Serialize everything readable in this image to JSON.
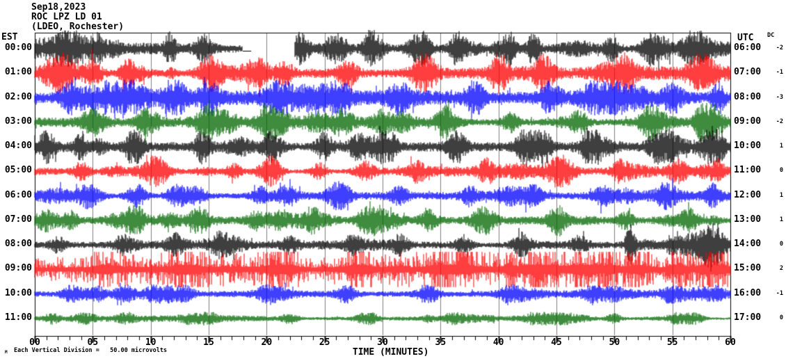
{
  "header": {
    "date": "Sep18,2023",
    "station": "ROC LPZ LD 01",
    "network": "(LDEO, Rochester)"
  },
  "axes": {
    "left_header": "EST",
    "right_header": "UTC",
    "dc_header": "DC",
    "x_title": "TIME (MINUTES)",
    "x_tick_labels": [
      "00",
      "05",
      "10",
      "15",
      "20",
      "25",
      "30",
      "35",
      "40",
      "45",
      "50",
      "55",
      "60"
    ]
  },
  "footer": {
    "logo": "M",
    "scale_text": "Each Vertical Division =   50.00 microvolts"
  },
  "colors": {
    "background": "#ffffff",
    "border": "#000000",
    "grid": "#808080",
    "trace_black": "#000000",
    "trace_red": "#ff0000",
    "trace_blue": "#0000ff",
    "trace_green": "#006600"
  },
  "chart_data": {
    "type": "line",
    "kind": "helicorder-seismogram",
    "title": "ROC LPZ LD 01 (LDEO, Rochester) Sep18,2023",
    "xlabel": "TIME (MINUTES)",
    "x_range_minutes": [
      0,
      60
    ],
    "x_major_tick_step": 5,
    "x_minor_tick_step": 1,
    "grid": "vertical-every-5-min",
    "vertical_division_microvolts": 50.0,
    "rows": [
      {
        "est": "00:00",
        "utc": "06:00",
        "dc": "-2",
        "color": "#000000",
        "base_amp": 9,
        "max_amp": 27,
        "seed": 11,
        "spiky": false,
        "events": [
          [
            2.8,
            0.6,
            2.2
          ],
          [
            5.5,
            0.4,
            1.6
          ],
          [
            11.7,
            0.3,
            2.6
          ],
          [
            14.5,
            0.5,
            1.8
          ],
          [
            23.0,
            0.5,
            2.5
          ],
          [
            26.0,
            0.8,
            2.0
          ],
          [
            29.0,
            0.5,
            2.2
          ],
          [
            33.5,
            0.5,
            2.0
          ],
          [
            36.5,
            0.4,
            2.2
          ],
          [
            41.0,
            0.4,
            2.2
          ],
          [
            43.0,
            0.35,
            3.0
          ],
          [
            49.8,
            0.4,
            2.0
          ],
          [
            53.5,
            0.5,
            1.6
          ],
          [
            57.0,
            0.5,
            1.8
          ]
        ],
        "gaps": [
          [
            17.9,
            18.6,
            22.4
          ]
        ]
      },
      {
        "est": "01:00",
        "utc": "07:00",
        "dc": "-1",
        "color": "#ff0000",
        "base_amp": 8,
        "max_amp": 30,
        "seed": 22,
        "spiky": false,
        "events": [
          [
            2.5,
            0.5,
            1.8
          ],
          [
            5.0,
            0.6,
            2.2
          ],
          [
            8.0,
            0.5,
            2.0
          ],
          [
            15.3,
            0.8,
            2.8
          ],
          [
            19.5,
            0.6,
            2.0
          ],
          [
            21.5,
            0.5,
            2.2
          ],
          [
            27.0,
            0.6,
            2.0
          ],
          [
            33.5,
            0.7,
            2.4
          ],
          [
            40.0,
            0.5,
            2.0
          ],
          [
            44.0,
            0.6,
            2.2
          ],
          [
            51.0,
            0.5,
            2.4
          ],
          [
            57.5,
            0.8,
            2.6
          ]
        ],
        "gaps": []
      },
      {
        "est": "02:00",
        "utc": "08:00",
        "dc": "-3",
        "color": "#0000ff",
        "base_amp": 8,
        "max_amp": 26,
        "seed": 33,
        "spiky": false,
        "events": [
          [
            3.0,
            0.5,
            2.0
          ],
          [
            7.0,
            0.6,
            2.2
          ],
          [
            12.5,
            0.5,
            2.0
          ],
          [
            15.0,
            0.6,
            2.4
          ],
          [
            21.0,
            0.7,
            2.2
          ],
          [
            26.0,
            0.5,
            2.0
          ],
          [
            31.5,
            0.6,
            2.2
          ],
          [
            38.0,
            0.6,
            2.4
          ],
          [
            44.5,
            0.6,
            2.4
          ],
          [
            50.0,
            0.5,
            2.0
          ],
          [
            55.0,
            0.6,
            2.2
          ],
          [
            59.0,
            0.4,
            2.2
          ]
        ],
        "gaps": []
      },
      {
        "est": "03:00",
        "utc": "09:00",
        "dc": "-2",
        "color": "#006600",
        "base_amp": 7,
        "max_amp": 28,
        "seed": 44,
        "spiky": false,
        "events": [
          [
            5.0,
            0.7,
            2.2
          ],
          [
            9.5,
            0.5,
            2.0
          ],
          [
            15.0,
            0.8,
            2.9
          ],
          [
            20.0,
            0.5,
            1.8
          ],
          [
            26.5,
            0.6,
            2.0
          ],
          [
            30.0,
            0.5,
            1.8
          ],
          [
            35.5,
            0.6,
            2.8
          ],
          [
            41.0,
            0.5,
            1.8
          ],
          [
            47.0,
            0.6,
            2.0
          ],
          [
            53.0,
            0.5,
            1.8
          ],
          [
            58.0,
            0.5,
            2.0
          ]
        ],
        "gaps": []
      },
      {
        "est": "04:00",
        "utc": "10:00",
        "dc": "1",
        "color": "#000000",
        "base_amp": 10,
        "max_amp": 26,
        "seed": 55,
        "spiky": false,
        "events": [
          [
            1.0,
            0.5,
            1.6
          ],
          [
            8.5,
            0.5,
            1.8
          ],
          [
            14.5,
            0.5,
            2.0
          ],
          [
            20.5,
            0.6,
            1.8
          ],
          [
            25.0,
            0.5,
            1.8
          ],
          [
            30.5,
            0.5,
            1.8
          ],
          [
            36.5,
            0.5,
            1.8
          ],
          [
            42.5,
            0.6,
            2.0
          ],
          [
            48.0,
            0.5,
            1.8
          ],
          [
            54.0,
            0.7,
            2.0
          ],
          [
            59.0,
            0.4,
            1.8
          ]
        ],
        "gaps": []
      },
      {
        "est": "05:00",
        "utc": "11:00",
        "dc": "0",
        "color": "#ff0000",
        "base_amp": 6,
        "max_amp": 24,
        "seed": 66,
        "spiky": false,
        "events": [
          [
            4.0,
            0.5,
            1.8
          ],
          [
            10.5,
            0.5,
            2.0
          ],
          [
            20.5,
            0.5,
            2.6
          ],
          [
            24.5,
            0.5,
            1.8
          ],
          [
            28.5,
            0.6,
            2.0
          ],
          [
            33.0,
            0.5,
            2.0
          ],
          [
            39.0,
            0.5,
            2.2
          ],
          [
            45.5,
            0.6,
            2.4
          ],
          [
            50.5,
            0.5,
            2.0
          ],
          [
            55.5,
            0.6,
            2.2
          ],
          [
            59.0,
            0.4,
            2.0
          ]
        ],
        "gaps": []
      },
      {
        "est": "06:00",
        "utc": "12:00",
        "dc": "1",
        "color": "#0000ff",
        "base_amp": 5.5,
        "max_amp": 22,
        "seed": 77,
        "spiky": false,
        "events": [
          [
            4.5,
            0.5,
            1.8
          ],
          [
            9.0,
            0.5,
            1.8
          ],
          [
            14.0,
            0.6,
            2.0
          ],
          [
            19.5,
            0.5,
            2.0
          ],
          [
            26.0,
            0.6,
            2.6
          ],
          [
            31.5,
            0.5,
            1.8
          ],
          [
            37.5,
            0.5,
            2.0
          ],
          [
            43.0,
            0.6,
            2.2
          ],
          [
            49.0,
            0.5,
            2.0
          ],
          [
            54.5,
            0.5,
            2.0
          ],
          [
            58.5,
            0.4,
            2.2
          ]
        ],
        "gaps": []
      },
      {
        "est": "07:00",
        "utc": "13:00",
        "dc": "1",
        "color": "#006600",
        "base_amp": 6,
        "max_amp": 24,
        "seed": 88,
        "spiky": false,
        "events": [
          [
            3.0,
            0.5,
            1.8
          ],
          [
            8.5,
            0.5,
            2.0
          ],
          [
            14.2,
            0.6,
            2.6
          ],
          [
            19.0,
            0.5,
            1.8
          ],
          [
            24.0,
            0.5,
            2.2
          ],
          [
            28.5,
            0.5,
            2.0
          ],
          [
            34.0,
            0.5,
            2.0
          ],
          [
            39.0,
            0.6,
            2.4
          ],
          [
            45.0,
            0.5,
            2.0
          ],
          [
            51.0,
            0.5,
            2.0
          ],
          [
            56.5,
            0.5,
            2.2
          ]
        ],
        "gaps": []
      },
      {
        "est": "08:00",
        "utc": "14:00",
        "dc": "0",
        "color": "#000000",
        "base_amp": 5,
        "max_amp": 34,
        "seed": 99,
        "spiky": false,
        "events": [
          [
            2.0,
            0.5,
            1.8
          ],
          [
            7.5,
            0.5,
            1.8
          ],
          [
            12.0,
            0.5,
            2.0
          ],
          [
            16.0,
            0.5,
            2.2
          ],
          [
            22.0,
            0.5,
            1.8
          ],
          [
            27.5,
            0.5,
            2.0
          ],
          [
            31.5,
            0.5,
            2.2
          ],
          [
            37.0,
            0.5,
            1.8
          ],
          [
            42.0,
            0.5,
            2.2
          ],
          [
            47.0,
            0.5,
            2.0
          ],
          [
            51.4,
            0.3,
            6.0
          ],
          [
            55.0,
            0.5,
            2.2
          ],
          [
            58.5,
            0.5,
            2.6
          ]
        ],
        "gaps": []
      },
      {
        "est": "09:00",
        "utc": "15:00",
        "dc": "2",
        "color": "#ff0000",
        "base_amp": 9,
        "max_amp": 22,
        "seed": 110,
        "spiky": true,
        "events": [
          [
            6.0,
            0.8,
            1.4
          ],
          [
            13.0,
            0.8,
            1.5
          ],
          [
            21.0,
            0.8,
            1.6
          ],
          [
            28.0,
            0.8,
            1.5
          ],
          [
            35.0,
            0.8,
            1.6
          ],
          [
            44.0,
            0.8,
            1.5
          ],
          [
            52.0,
            0.8,
            1.5
          ],
          [
            58.0,
            0.6,
            1.5
          ]
        ],
        "gaps": []
      },
      {
        "est": "10:00",
        "utc": "16:00",
        "dc": "-1",
        "color": "#0000ff",
        "base_amp": 4.5,
        "max_amp": 14,
        "seed": 121,
        "spiky": false,
        "events": [
          [
            3.0,
            0.5,
            1.8
          ],
          [
            8.0,
            0.5,
            1.8
          ],
          [
            13.0,
            0.6,
            2.0
          ],
          [
            20.0,
            0.5,
            1.8
          ],
          [
            27.0,
            0.5,
            1.8
          ],
          [
            34.0,
            0.5,
            1.8
          ],
          [
            41.0,
            0.5,
            1.8
          ],
          [
            48.0,
            0.5,
            1.8
          ],
          [
            55.0,
            0.5,
            1.8
          ],
          [
            59.0,
            0.3,
            2.0
          ]
        ],
        "gaps": []
      },
      {
        "est": "11:00",
        "utc": "17:00",
        "dc": "0",
        "color": "#006600",
        "base_amp": 3.5,
        "max_amp": 10,
        "seed": 132,
        "spiky": false,
        "events": [
          [
            1.5,
            0.4,
            1.6
          ],
          [
            8.0,
            0.5,
            1.8
          ],
          [
            15.0,
            0.5,
            1.8
          ],
          [
            22.0,
            0.5,
            1.8
          ],
          [
            29.0,
            0.5,
            1.6
          ],
          [
            36.0,
            0.5,
            1.8
          ],
          [
            43.0,
            0.5,
            1.8
          ],
          [
            50.0,
            0.5,
            1.8
          ],
          [
            57.0,
            0.5,
            1.8
          ]
        ],
        "gaps": []
      }
    ]
  }
}
